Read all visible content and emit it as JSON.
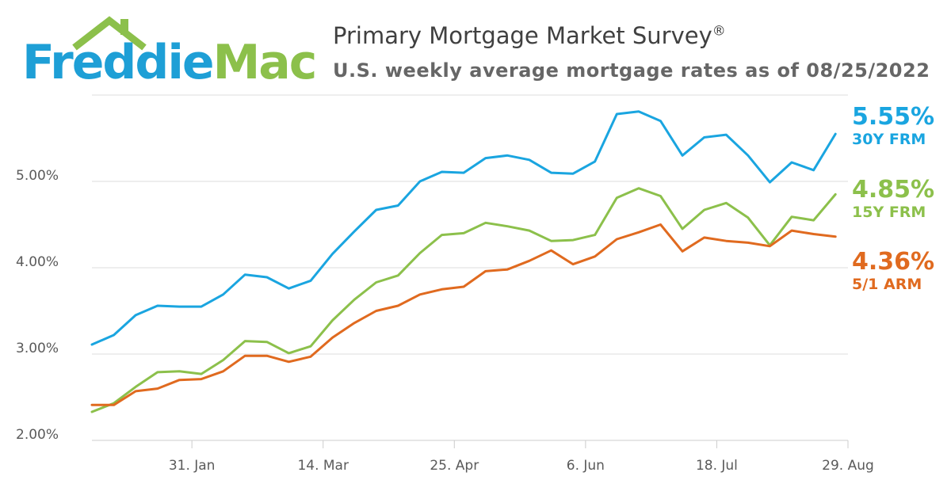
{
  "logo": {
    "part1": "Freddie",
    "part2": "Mac"
  },
  "header": {
    "title": "Primary Mortgage Market Survey",
    "title_mark": "®",
    "subtitle": "U.S. weekly average mortgage rates as of 08/25/2022"
  },
  "colors": {
    "frm30": "#1aa5e0",
    "frm15": "#8cc04b",
    "arm51": "#e06a1f",
    "grid": "#dddddd",
    "logo_blue": "#1e9fd6",
    "logo_green": "#8cc04b"
  },
  "end_labels": [
    {
      "value": "5.55%",
      "name": "30Y FRM",
      "color": "#1aa5e0"
    },
    {
      "value": "4.85%",
      "name": "15Y FRM",
      "color": "#8cc04b"
    },
    {
      "value": "4.36%",
      "name": "5/1 ARM",
      "color": "#e06a1f"
    }
  ],
  "chart_data": {
    "type": "line",
    "x": [
      "2022-01-06",
      "2022-01-13",
      "2022-01-20",
      "2022-01-27",
      "2022-02-03",
      "2022-02-10",
      "2022-02-17",
      "2022-02-24",
      "2022-03-03",
      "2022-03-10",
      "2022-03-17",
      "2022-03-24",
      "2022-03-31",
      "2022-04-07",
      "2022-04-14",
      "2022-04-21",
      "2022-04-28",
      "2022-05-05",
      "2022-05-12",
      "2022-05-19",
      "2022-05-26",
      "2022-06-02",
      "2022-06-09",
      "2022-06-16",
      "2022-06-23",
      "2022-06-30",
      "2022-07-07",
      "2022-07-14",
      "2022-07-21",
      "2022-07-28",
      "2022-08-04",
      "2022-08-11",
      "2022-08-18",
      "2022-08-25"
    ],
    "series": [
      {
        "name": "30Y FRM",
        "values": [
          3.22,
          3.45,
          3.56,
          3.55,
          3.55,
          3.69,
          3.92,
          3.89,
          3.76,
          3.85,
          4.16,
          4.42,
          4.67,
          4.72,
          5.0,
          5.11,
          5.1,
          5.27,
          5.3,
          5.25,
          5.1,
          5.09,
          5.23,
          5.78,
          5.81,
          5.7,
          5.3,
          5.51,
          5.54,
          5.3,
          4.99,
          5.22,
          5.13,
          5.55
        ]
      },
      {
        "name": "15Y FRM",
        "values": [
          2.43,
          2.62,
          2.79,
          2.8,
          2.77,
          2.93,
          3.15,
          3.14,
          3.01,
          3.09,
          3.39,
          3.63,
          3.83,
          3.91,
          4.17,
          4.38,
          4.4,
          4.52,
          4.48,
          4.43,
          4.31,
          4.32,
          4.38,
          4.81,
          4.92,
          4.83,
          4.45,
          4.67,
          4.75,
          4.58,
          4.26,
          4.59,
          4.55,
          4.85
        ]
      },
      {
        "name": "5/1 ARM",
        "values": [
          2.41,
          2.57,
          2.6,
          2.7,
          2.71,
          2.8,
          2.98,
          2.98,
          2.91,
          2.97,
          3.19,
          3.36,
          3.5,
          3.56,
          3.69,
          3.75,
          3.78,
          3.96,
          3.98,
          4.08,
          4.2,
          4.04,
          4.13,
          4.33,
          4.41,
          4.5,
          4.19,
          4.35,
          4.31,
          4.29,
          4.25,
          4.43,
          4.39,
          4.36
        ]
      }
    ],
    "xlabel": "",
    "ylabel": "",
    "ylim": [
      2.0,
      6.0
    ],
    "yticks": [
      {
        "value": 2.0,
        "label": "2.00%"
      },
      {
        "value": 3.0,
        "label": "3.00%"
      },
      {
        "value": 4.0,
        "label": "4.00%"
      },
      {
        "value": 5.0,
        "label": "5.00%"
      }
    ],
    "xticks": [
      {
        "date": "2022-01-31",
        "label": "31. Jan"
      },
      {
        "date": "2022-03-14",
        "label": "14. Mar"
      },
      {
        "date": "2022-04-25",
        "label": "25. Apr"
      },
      {
        "date": "2022-06-06",
        "label": "6. Jun"
      },
      {
        "date": "2022-07-18",
        "label": "18. Jul"
      },
      {
        "date": "2022-08-29",
        "label": "29. Aug"
      }
    ],
    "x_range": [
      "2021-12-30",
      "2022-08-29"
    ],
    "start_values": [
      {
        "series": "30Y FRM",
        "date": "2021-12-30",
        "value": 3.11
      },
      {
        "series": "15Y FRM",
        "date": "2021-12-30",
        "value": 2.33
      },
      {
        "series": "5/1 ARM",
        "date": "2021-12-30",
        "value": 2.41
      }
    ],
    "grid": true,
    "legend": "right"
  }
}
